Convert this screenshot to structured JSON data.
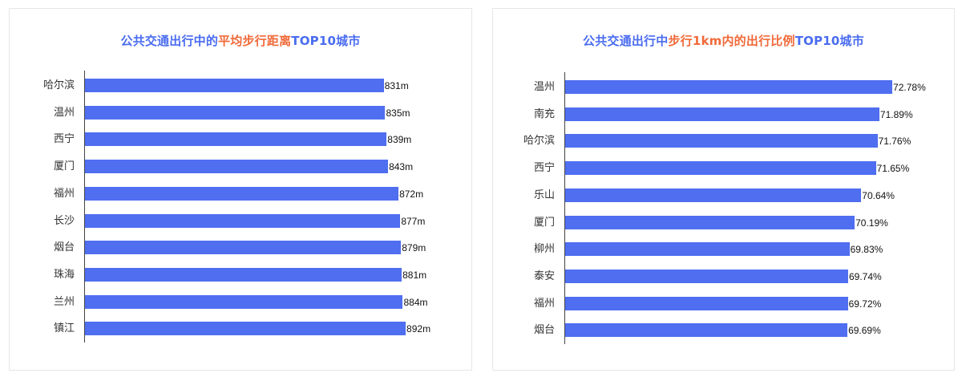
{
  "charts": [
    {
      "title_parts": [
        {
          "text": "公共交通出行中的",
          "color": "blue"
        },
        {
          "text": "平均步行距离",
          "color": "orange"
        },
        {
          "text": "TOP10城市",
          "color": "blue"
        }
      ]
    },
    {
      "title_parts": [
        {
          "text": "公共交通出行中",
          "color": "blue"
        },
        {
          "text": "步行1km内的出行比例",
          "color": "orange"
        },
        {
          "text": "TOP10城市",
          "color": "blue"
        }
      ]
    }
  ],
  "colors": {
    "bar": "#4f6ef0",
    "title_blue": "#4a6cf0",
    "title_orange": "#f06a3a"
  },
  "chart_data": [
    {
      "type": "bar",
      "orientation": "horizontal",
      "title": "公共交通出行中的平均步行距离TOP10城市",
      "categories": [
        "哈尔滨",
        "温州",
        "西宁",
        "厦门",
        "福州",
        "长沙",
        "烟台",
        "珠海",
        "兰州",
        "镇江"
      ],
      "values": [
        831,
        835,
        839,
        843,
        872,
        877,
        879,
        881,
        884,
        892
      ],
      "labels": [
        "831m",
        "835m",
        "839m",
        "843m",
        "872m",
        "877m",
        "879m",
        "881m",
        "884m",
        "892m"
      ],
      "unit": "m",
      "xlabel": "",
      "ylabel": "",
      "xlim": [
        0,
        892
      ],
      "grid": false,
      "legend": null
    },
    {
      "type": "bar",
      "orientation": "horizontal",
      "title": "公共交通出行中步行1km内的出行比例TOP10城市",
      "categories": [
        "温州",
        "南充",
        "哈尔滨",
        "西宁",
        "乐山",
        "厦门",
        "柳州",
        "泰安",
        "福州",
        "烟台"
      ],
      "values": [
        72.78,
        71.89,
        71.76,
        71.65,
        70.64,
        70.19,
        69.83,
        69.74,
        69.72,
        69.69
      ],
      "labels": [
        "72.78%",
        "71.89%",
        "71.76%",
        "71.65%",
        "70.64%",
        "70.19%",
        "69.83%",
        "69.74%",
        "69.72%",
        "69.69%"
      ],
      "unit": "%",
      "xlabel": "",
      "ylabel": "",
      "xlim": [
        50.26,
        72.78
      ],
      "grid": false,
      "legend": null
    }
  ]
}
